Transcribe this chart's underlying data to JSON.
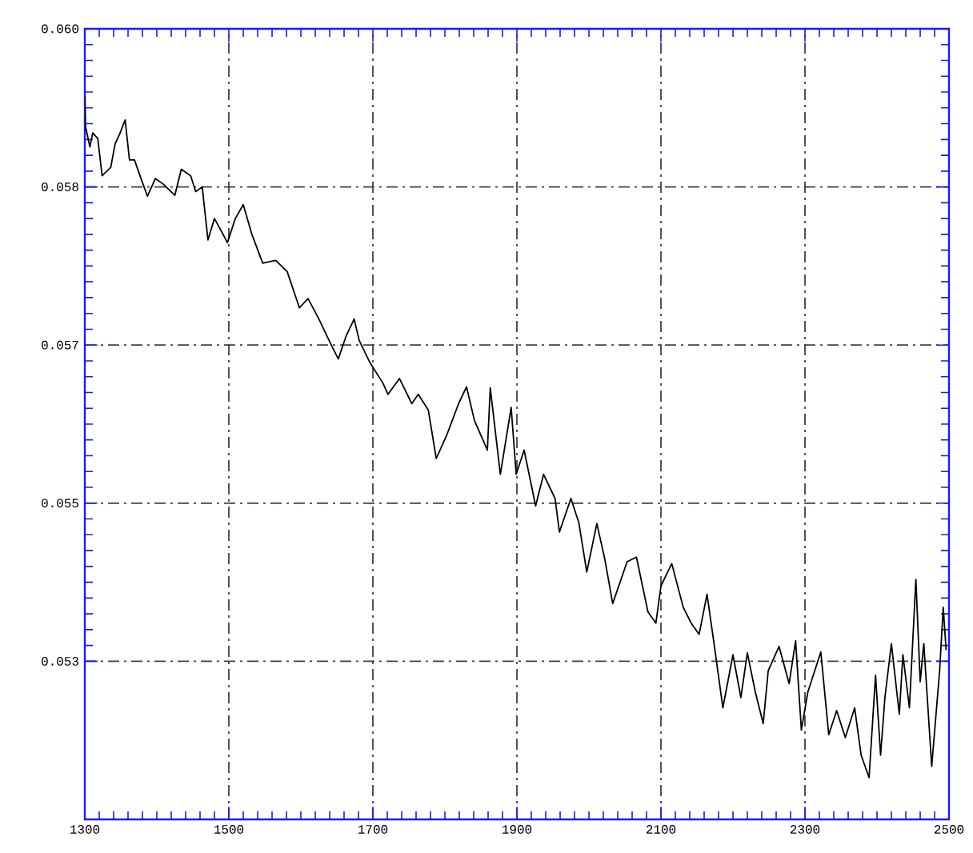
{
  "chart_data": {
    "type": "line",
    "xlim": [
      1300,
      2500
    ],
    "ylim": [
      0.0515,
      0.06
    ],
    "xticks": [
      1300,
      1500,
      1700,
      1900,
      2100,
      2300,
      2500
    ],
    "yticks": [
      {
        "value": 0.0532,
        "label": "0.053"
      },
      {
        "value": 0.0549,
        "label": "0.055"
      },
      {
        "value": 0.0566,
        "label": "0.057"
      },
      {
        "value": 0.0583,
        "label": "0.058"
      },
      {
        "value": 0.06,
        "label": "0.060"
      }
    ],
    "grid": true,
    "line_style": "solid",
    "marker": "none",
    "series": [
      {
        "color": "#000000",
        "x": [
          1300,
          1301,
          1307,
          1311,
          1318,
          1324,
          1336,
          1342,
          1349,
          1356,
          1362,
          1369,
          1378,
          1387,
          1398,
          1409,
          1425,
          1434,
          1447,
          1454,
          1463,
          1471,
          1480,
          1492,
          1498,
          1509,
          1520,
          1532,
          1547,
          1565,
          1581,
          1598,
          1610,
          1625,
          1641,
          1652,
          1663,
          1674,
          1681,
          1696,
          1714,
          1721,
          1737,
          1754,
          1763,
          1777,
          1788,
          1803,
          1819,
          1830,
          1841,
          1859,
          1863,
          1877,
          1892,
          1899,
          1910,
          1926,
          1937,
          1953,
          1959,
          1975,
          1986,
          1997,
          2011,
          2022,
          2033,
          2053,
          2066,
          2082,
          2093,
          2100,
          2115,
          2131,
          2142,
          2153,
          2164,
          2175,
          2186,
          2200,
          2211,
          2220,
          2231,
          2242,
          2249,
          2264,
          2278,
          2287,
          2295,
          2304,
          2322,
          2333,
          2344,
          2356,
          2369,
          2378,
          2389,
          2398,
          2405,
          2411,
          2420,
          2431,
          2436,
          2445,
          2454,
          2460,
          2465,
          2476,
          2487,
          2492,
          2496
        ],
        "values": [
          0.05928,
          0.05895,
          0.05873,
          0.05888,
          0.05882,
          0.05842,
          0.05851,
          0.05876,
          0.05888,
          0.05902,
          0.05859,
          0.05859,
          0.05839,
          0.0582,
          0.05839,
          0.05833,
          0.05821,
          0.05849,
          0.05842,
          0.05825,
          0.0583,
          0.05773,
          0.05796,
          0.05779,
          0.0577,
          0.05796,
          0.05811,
          0.05779,
          0.05748,
          0.05751,
          0.05739,
          0.057,
          0.0571,
          0.05688,
          0.05662,
          0.05645,
          0.0567,
          0.05688,
          0.05665,
          0.05641,
          0.05619,
          0.05607,
          0.05624,
          0.05597,
          0.05607,
          0.0559,
          0.05538,
          0.05564,
          0.05597,
          0.05615,
          0.05579,
          0.05547,
          0.05614,
          0.05521,
          0.05593,
          0.05521,
          0.05547,
          0.05487,
          0.05521,
          0.05495,
          0.05459,
          0.05495,
          0.05469,
          0.05416,
          0.05468,
          0.0543,
          0.05382,
          0.05427,
          0.05432,
          0.05373,
          0.05361,
          0.05401,
          0.05425,
          0.05378,
          0.05361,
          0.05349,
          0.05392,
          0.05332,
          0.0527,
          0.05327,
          0.05281,
          0.05329,
          0.05287,
          0.05253,
          0.0531,
          0.05336,
          0.05296,
          0.05342,
          0.05246,
          0.05287,
          0.0533,
          0.05241,
          0.05267,
          0.05238,
          0.0527,
          0.05219,
          0.05195,
          0.05305,
          0.05219,
          0.05281,
          0.05339,
          0.05263,
          0.05327,
          0.0527,
          0.05408,
          0.05298,
          0.05339,
          0.05207,
          0.0531,
          0.05378,
          0.05332
        ]
      }
    ]
  }
}
